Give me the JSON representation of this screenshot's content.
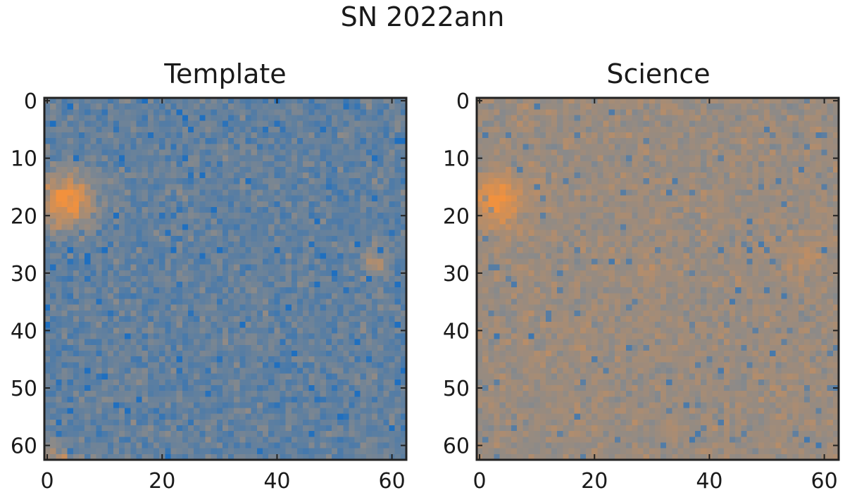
{
  "title": "SN 2022ann",
  "colors": {
    "low": "#1f6fbf",
    "mid": "#8a8a8a",
    "high": "#f2913d",
    "frame": "#222222"
  },
  "chart_data": [
    {
      "type": "heatmap",
      "title": "Template",
      "xlabel": "",
      "ylabel": "",
      "grid_size": 63,
      "xlim": [
        -0.5,
        62.5
      ],
      "ylim": [
        62.5,
        -0.5
      ],
      "xticks": [
        0,
        20,
        40,
        60
      ],
      "yticks": [
        0,
        10,
        20,
        30,
        40,
        50,
        60
      ],
      "colormap": "blue-gray-orange",
      "background_level": 0.32,
      "noise_level": 0.1,
      "sources": [
        {
          "x": 3.5,
          "y": 17.5,
          "sigma": 3.3,
          "amp": 0.68
        },
        {
          "x": 57,
          "y": 28,
          "sigma": 1.8,
          "amp": 0.3
        },
        {
          "x": 1.5,
          "y": 62,
          "sigma": 1.8,
          "amp": 0.35
        }
      ]
    },
    {
      "type": "heatmap",
      "title": "Science",
      "xlabel": "",
      "ylabel": "",
      "grid_size": 63,
      "xlim": [
        -0.5,
        62.5
      ],
      "ylim": [
        62.5,
        -0.5
      ],
      "xticks": [
        0,
        20,
        40,
        60
      ],
      "yticks": [
        0,
        10,
        20,
        30,
        40,
        50,
        60
      ],
      "colormap": "blue-gray-orange",
      "background_level": 0.58,
      "noise_level": 0.07,
      "sources": [
        {
          "x": 3,
          "y": 17.5,
          "sigma": 3.0,
          "amp": 0.42
        },
        {
          "x": 56.5,
          "y": 27.5,
          "sigma": 1.8,
          "amp": 0.12
        },
        {
          "x": 30.5,
          "y": 30.5,
          "sigma": 1.8,
          "amp": 0.1
        }
      ]
    }
  ]
}
